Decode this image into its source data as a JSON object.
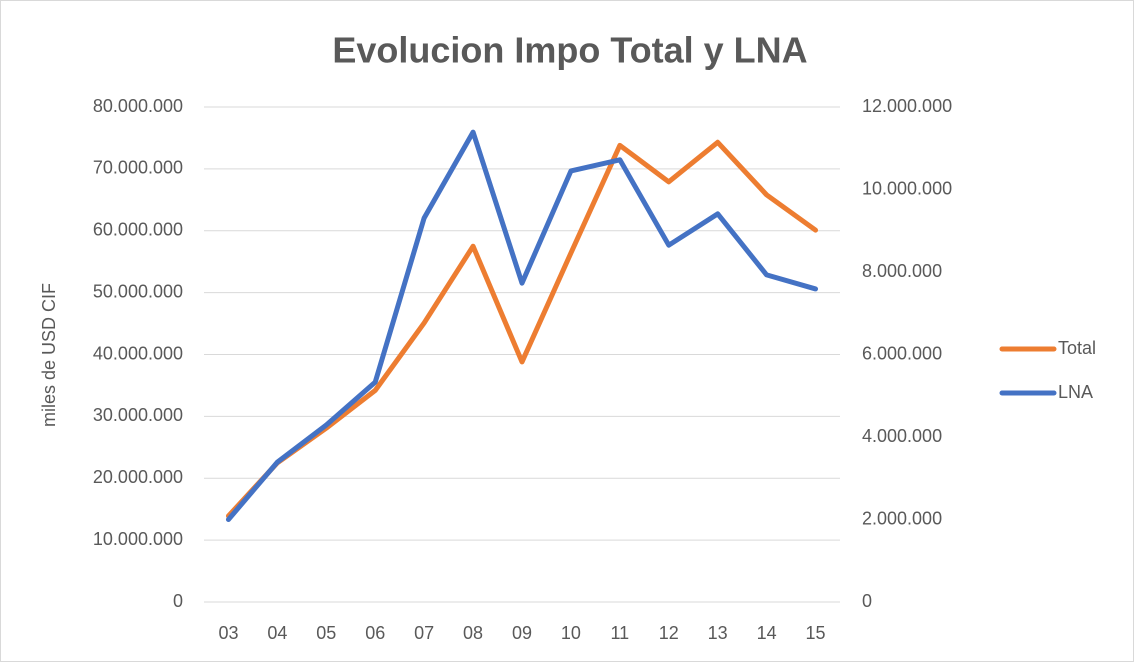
{
  "chart_data": {
    "type": "line",
    "title": "Evolucion Impo Total y LNA",
    "ylabel": "miles de USD CIF",
    "categories": [
      "03",
      "04",
      "05",
      "06",
      "07",
      "08",
      "09",
      "10",
      "11",
      "12",
      "13",
      "14",
      "15"
    ],
    "series": [
      {
        "name": "Total",
        "color": "#ed7d31",
        "values": [
          13900000,
          22500000,
          28100000,
          34200000,
          45100000,
          57500000,
          38800000,
          56400000,
          73800000,
          67900000,
          74300000,
          65800000,
          60100000
        ]
      },
      {
        "name": "LNA",
        "color": "#4472c4",
        "axis": "y2",
        "values": [
          2000000,
          3390000,
          4290000,
          5330000,
          9310000,
          11390000,
          7730000,
          10450000,
          10720000,
          8650000,
          9410000,
          7930000,
          7590000
        ]
      }
    ],
    "ylim": [
      0,
      80000000
    ],
    "yticks": [
      0,
      {
        "value": 10000000,
        "label": "10.000.000"
      },
      {
        "value": 20000000,
        "label": "20.000.000"
      },
      {
        "value": 30000000,
        "label": "30.000.000"
      },
      {
        "value": 40000000,
        "label": "40.000.000"
      },
      {
        "value": 50000000,
        "label": "50.000.000"
      },
      {
        "value": 60000000,
        "label": "60.000.000"
      },
      {
        "value": 70000000,
        "label": "70.000.000"
      },
      {
        "value": 80000000,
        "label": "80.000.000"
      }
    ],
    "y2lim": [
      0,
      12000000
    ],
    "y2ticks": [
      0,
      {
        "value": 2000000,
        "label": "2.000.000"
      },
      {
        "value": 4000000,
        "label": "4.000.000"
      },
      {
        "value": 6000000,
        "label": "6.000.000"
      },
      {
        "value": 8000000,
        "label": "8.000.000"
      },
      {
        "value": 10000000,
        "label": "10.000.000"
      },
      {
        "value": 12000000,
        "label": "12.000.000"
      }
    ],
    "grid": true,
    "legend": "right"
  }
}
